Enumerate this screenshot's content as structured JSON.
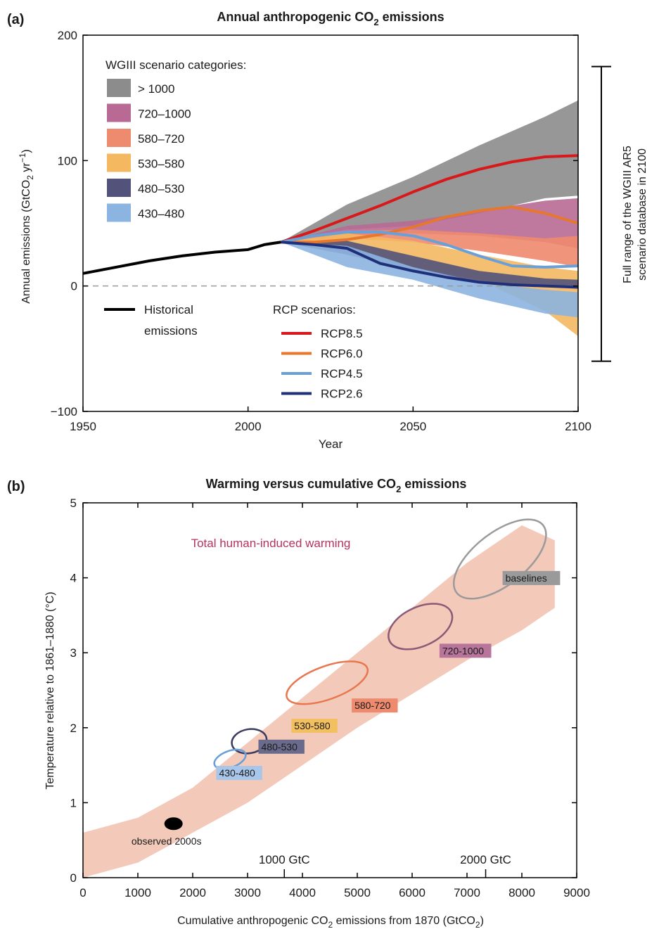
{
  "chart_data": [
    {
      "id": "a",
      "type": "area",
      "panel_label": "(a)",
      "title": "Annual anthropogenic CO",
      "title_sub": "2",
      "title_tail": " emissions",
      "ylabel": "Annual emissions (GtCO",
      "ylabel_sub": "2",
      "ylabel_mid": " yr",
      "ylabel_sup": "−1",
      "ylabel_tail": ")",
      "xlabel": "Year",
      "xlim": [
        1950,
        2100
      ],
      "ylim": [
        -100,
        200
      ],
      "xticks": [
        "1950",
        "2000",
        "2050",
        "2100"
      ],
      "yticks": [
        "200",
        "100",
        "0",
        "−100"
      ],
      "zero_line": "dashed",
      "legend_bands_title": "WGIII scenario categories:",
      "legend_hist_label_1": "Historical",
      "legend_hist_label_2": "emissions",
      "legend_rcp_title": "RCP scenarios:",
      "range_bar_label_1": "Full range of the WGIII AR5",
      "range_bar_label_2": "scenario database in 2100",
      "range_bar": [
        -60,
        175
      ],
      "historical": {
        "x": [
          1950,
          1960,
          1970,
          1980,
          1990,
          2000,
          2005,
          2010
        ],
        "y": [
          10,
          15,
          20,
          24,
          27,
          29,
          33,
          35
        ]
      },
      "bands": [
        {
          "label": "> 1000",
          "color": "#8c8c8c",
          "x": [
            2010,
            2030,
            2050,
            2070,
            2090,
            2100
          ],
          "upper": [
            35,
            65,
            87,
            112,
            135,
            148
          ],
          "lower": [
            35,
            45,
            48,
            58,
            70,
            72
          ]
        },
        {
          "label": "720–1000",
          "color": "#b86a95",
          "x": [
            2010,
            2030,
            2050,
            2070,
            2090,
            2100
          ],
          "upper": [
            35,
            48,
            52,
            60,
            68,
            70
          ],
          "lower": [
            35,
            40,
            42,
            40,
            35,
            30
          ]
        },
        {
          "label": "580–720",
          "color": "#ee8a6e",
          "x": [
            2010,
            2030,
            2050,
            2070,
            2090,
            2100
          ],
          "upper": [
            35,
            44,
            45,
            42,
            38,
            40
          ],
          "lower": [
            35,
            38,
            35,
            28,
            20,
            15
          ]
        },
        {
          "label": "530–580",
          "color": "#f3b860",
          "x": [
            2010,
            2030,
            2050,
            2070,
            2090,
            2100
          ],
          "upper": [
            35,
            42,
            36,
            25,
            15,
            12
          ],
          "lower": [
            35,
            30,
            15,
            5,
            -20,
            -40
          ]
        },
        {
          "label": "480–530",
          "color": "#52527a",
          "x": [
            2010,
            2030,
            2050,
            2070,
            2090,
            2100
          ],
          "upper": [
            35,
            36,
            24,
            12,
            6,
            5
          ],
          "lower": [
            35,
            25,
            12,
            3,
            0,
            0
          ]
        },
        {
          "label": "430–480",
          "color": "#8cb4e0",
          "x": [
            2010,
            2030,
            2050,
            2070,
            2090,
            2100
          ],
          "upper": [
            35,
            32,
            15,
            3,
            -3,
            -5
          ],
          "lower": [
            35,
            15,
            5,
            -10,
            -22,
            -25
          ]
        }
      ],
      "series": [
        {
          "name": "RCP8.5",
          "color": "#d7191c",
          "x": [
            2010,
            2020,
            2030,
            2040,
            2050,
            2060,
            2070,
            2080,
            2090,
            2100
          ],
          "values": [
            35,
            44,
            54,
            64,
            75,
            85,
            93,
            99,
            103,
            104
          ]
        },
        {
          "name": "RCP6.0",
          "color": "#e8772e",
          "x": [
            2010,
            2020,
            2030,
            2040,
            2050,
            2060,
            2070,
            2080,
            2090,
            2100
          ],
          "values": [
            35,
            35,
            37,
            41,
            47,
            55,
            60,
            63,
            58,
            50
          ]
        },
        {
          "name": "RCP4.5",
          "color": "#6aa0d8",
          "x": [
            2010,
            2020,
            2030,
            2040,
            2050,
            2060,
            2070,
            2080,
            2090,
            2100
          ],
          "values": [
            35,
            40,
            43,
            43,
            40,
            33,
            24,
            16,
            15,
            16
          ]
        },
        {
          "name": "RCP2.6",
          "color": "#1f2f7a",
          "x": [
            2010,
            2020,
            2030,
            2040,
            2050,
            2060,
            2070,
            2080,
            2090,
            2100
          ],
          "values": [
            35,
            33,
            30,
            18,
            12,
            7,
            3,
            1,
            0,
            -1
          ]
        }
      ]
    },
    {
      "id": "b",
      "type": "scatter",
      "panel_label": "(b)",
      "title": "Warming versus cumulative CO",
      "title_sub": "2",
      "title_tail": " emissions",
      "ylabel": "Temperature relative to 1861–1880 (°C)",
      "xlabel": "Cumulative anthropogenic CO",
      "xlabel_sub": "2",
      "xlabel_tail": " emissions from 1870  (GtCO",
      "xlabel_sub2": "2",
      "xlabel_end": ")",
      "xlim": [
        0,
        9000
      ],
      "ylim": [
        0,
        5
      ],
      "xticks": [
        "0",
        "1000",
        "2000",
        "3000",
        "4000",
        "5000",
        "6000",
        "7000",
        "8000",
        "9000"
      ],
      "yticks": [
        "0",
        "1",
        "2",
        "3",
        "4",
        "5"
      ],
      "secondary_ticks": [
        {
          "label": "1000 GtC",
          "x": 3670
        },
        {
          "label": "2000 GtC",
          "x": 7340
        }
      ],
      "band_label": "Total human-induced warming",
      "band_color": "#f1bfae",
      "band": {
        "x": [
          0,
          1000,
          2000,
          3000,
          4000,
          5000,
          6000,
          7000,
          8000,
          8600
        ],
        "upper": [
          0.6,
          0.8,
          1.2,
          1.8,
          2.4,
          3.0,
          3.6,
          4.2,
          4.7,
          4.5
        ],
        "lower": [
          0.0,
          0.2,
          0.6,
          1.0,
          1.5,
          2.0,
          2.45,
          2.9,
          3.3,
          3.6
        ]
      },
      "observed": {
        "label": "observed 2000s",
        "x": 1650,
        "y": 0.72
      },
      "ellipses": [
        {
          "label": "baselines",
          "color": "#9a9a9a",
          "label_bg": "#9a9a9a",
          "label_color": "#1a1a1a",
          "cx": 7600,
          "cy": 4.25,
          "rx": 1000,
          "ry": 0.35,
          "rot": -38,
          "label_x": 7700,
          "label_y": 3.95
        },
        {
          "label": "720-1000",
          "color": "#8c5a77",
          "label_bg": "#b8759c",
          "label_color": "#1a1a1a",
          "cx": 6150,
          "cy": 3.35,
          "rx": 620,
          "ry": 0.26,
          "rot": -25,
          "label_x": 6550,
          "label_y": 2.98
        },
        {
          "label": "580-720",
          "color": "#e8774f",
          "label_bg": "#ee8a6e",
          "label_color": "#1a1a1a",
          "cx": 4450,
          "cy": 2.6,
          "rx": 780,
          "ry": 0.22,
          "rot": -20,
          "label_x": 4950,
          "label_y": 2.25
        },
        {
          "label": "530-580",
          "color": "#f2b048",
          "label_bg": "#f3c060",
          "label_color": "#1a1a1a",
          "cx": 3600,
          "cy": 2.05,
          "rx": 0,
          "ry": 0,
          "rot": 0,
          "label_x": 3850,
          "label_y": 1.98
        },
        {
          "label": "480-530",
          "color": "#3c3c60",
          "label_bg": "#6a6a8c",
          "label_color": "#1a1a1a",
          "cx": 3030,
          "cy": 1.82,
          "rx": 320,
          "ry": 0.16,
          "rot": -10,
          "label_x": 3250,
          "label_y": 1.7
        },
        {
          "label": "430-480",
          "color": "#6a9ed6",
          "label_bg": "#a8c6ea",
          "label_color": "#1a1a1a",
          "cx": 2680,
          "cy": 1.58,
          "rx": 300,
          "ry": 0.11,
          "rot": -20,
          "label_x": 2480,
          "label_y": 1.35
        }
      ]
    }
  ]
}
